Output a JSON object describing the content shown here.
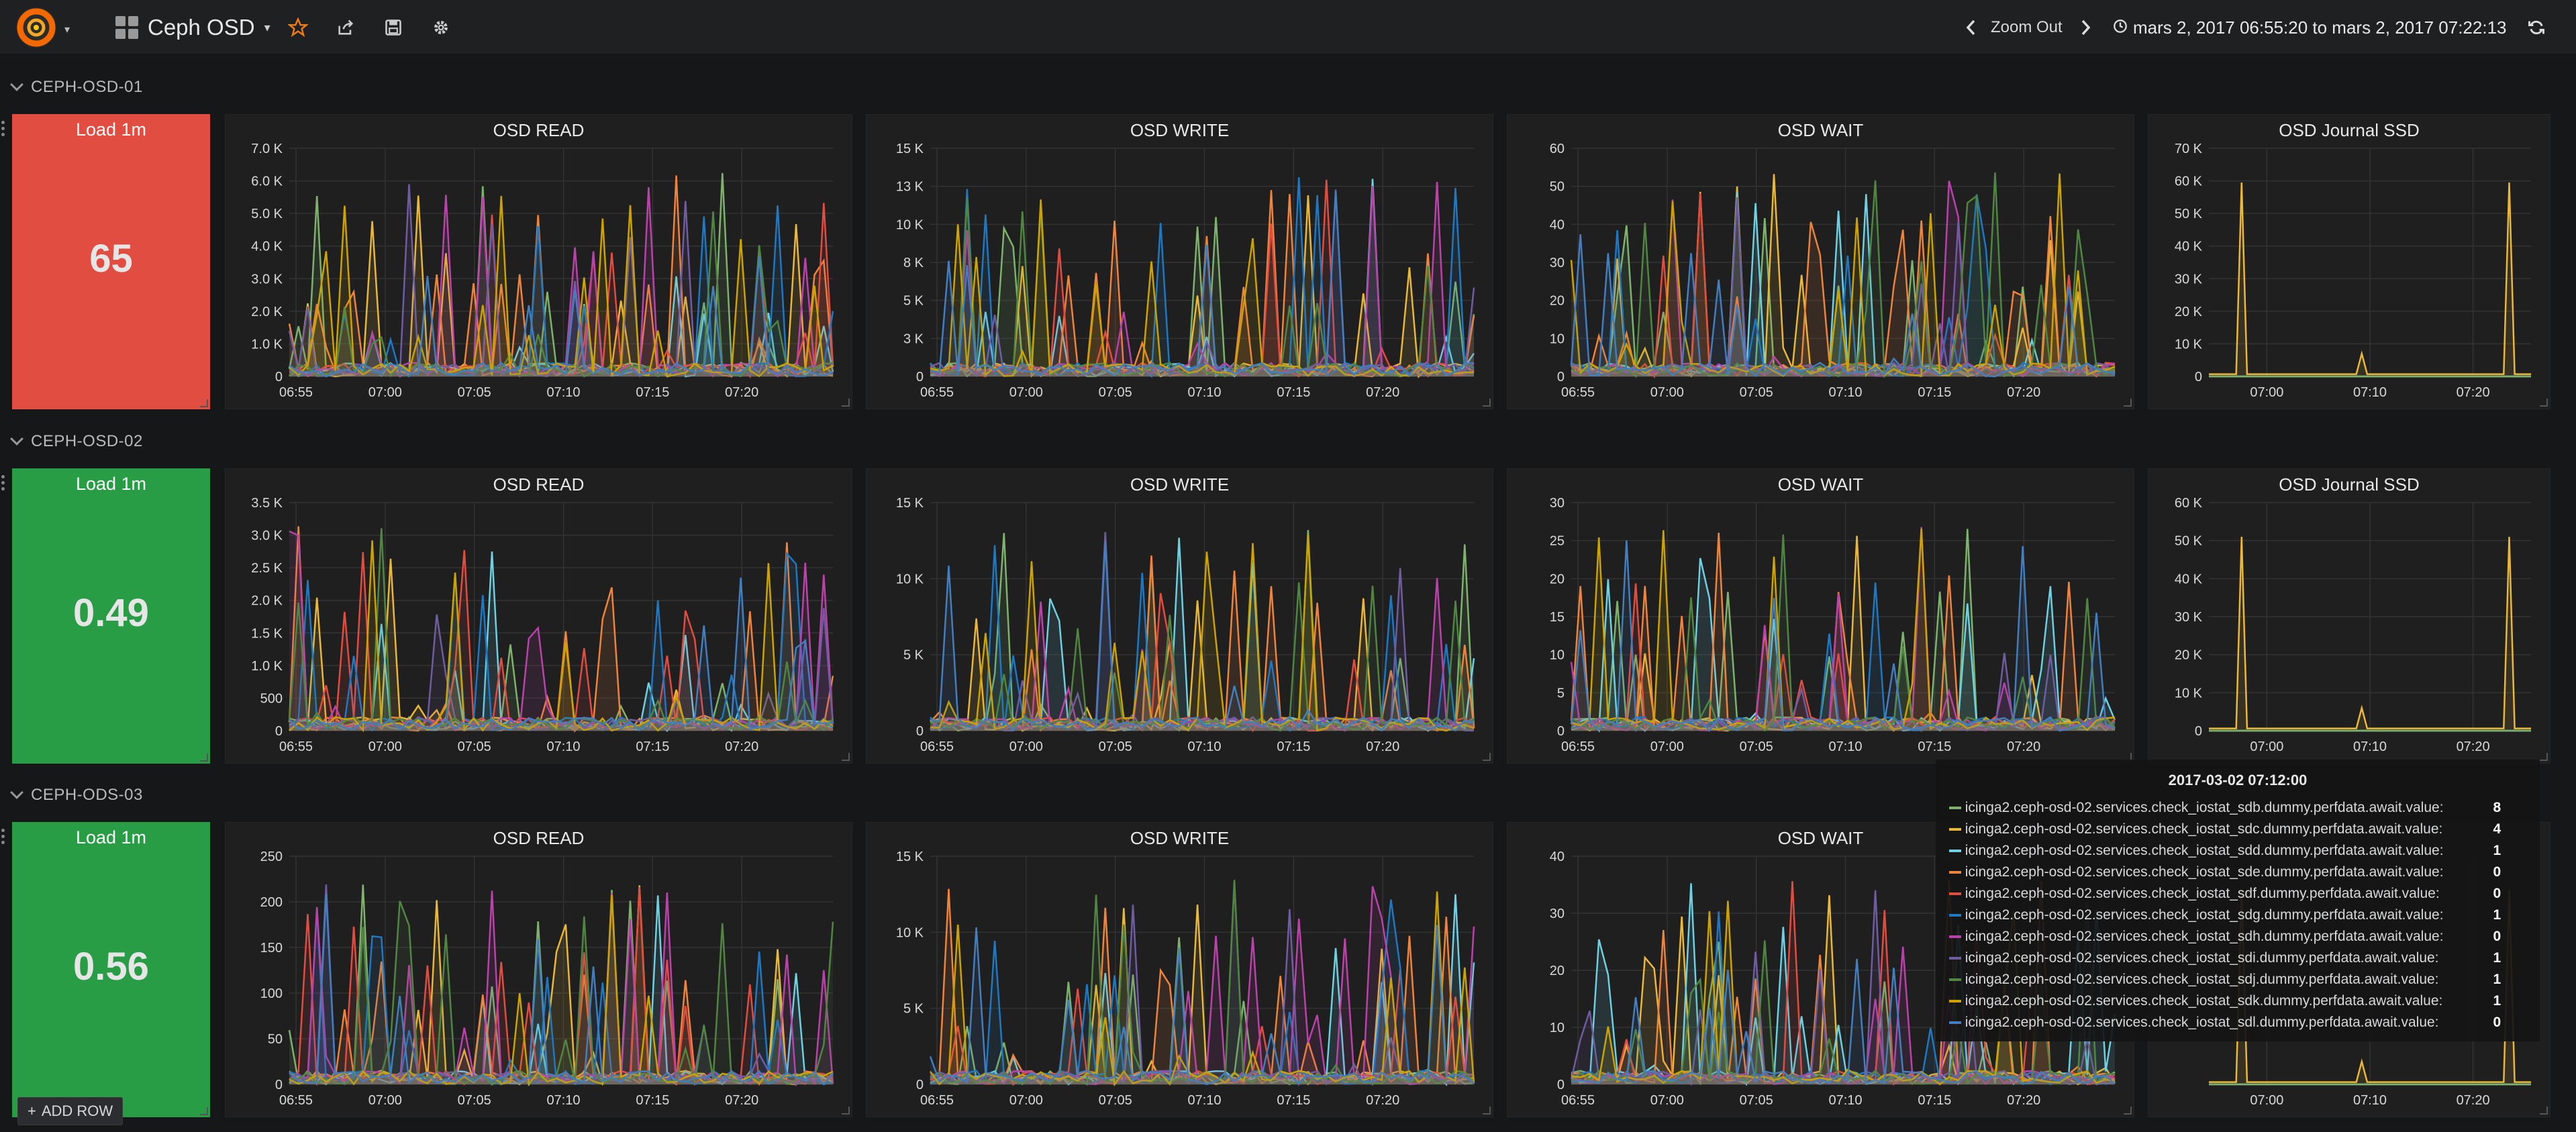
{
  "header": {
    "dashboard_title": "Ceph OSD",
    "zoom_out_label": "Zoom Out",
    "time_range": "mars 2, 2017 06:55:20 to mars 2, 2017 07:22:13"
  },
  "colors": {
    "stat_red": "#e24d42",
    "stat_green": "#299c46",
    "series": [
      "#7eb26d",
      "#eab839",
      "#6ed0e0",
      "#ef843c",
      "#e24d42",
      "#1f78c1",
      "#ba43a9",
      "#705da0",
      "#508642",
      "#cca300",
      "#447ebc"
    ]
  },
  "rows": [
    {
      "title": "CEPH-OSD-01",
      "stat": {
        "title": "Load 1m",
        "value": "65",
        "color": "red"
      },
      "panels": [
        {
          "title": "OSD READ",
          "y_ticks": [
            "0",
            "1.0 K",
            "2.0 K",
            "3.0 K",
            "4.0 K",
            "5.0 K",
            "6.0 K",
            "7.0 K"
          ],
          "x_ticks": [
            "06:55",
            "07:00",
            "07:05",
            "07:10",
            "07:15",
            "07:20"
          ]
        },
        {
          "title": "OSD WRITE",
          "y_ticks": [
            "0",
            "3 K",
            "5 K",
            "8 K",
            "10 K",
            "13 K",
            "15 K"
          ],
          "x_ticks": [
            "06:55",
            "07:00",
            "07:05",
            "07:10",
            "07:15",
            "07:20"
          ]
        },
        {
          "title": "OSD WAIT",
          "y_ticks": [
            "0",
            "10",
            "20",
            "30",
            "40",
            "50",
            "60"
          ],
          "x_ticks": [
            "06:55",
            "07:00",
            "07:05",
            "07:10",
            "07:15",
            "07:20"
          ]
        },
        {
          "title": "OSD Journal SSD",
          "y_ticks": [
            "0",
            "10 K",
            "20 K",
            "30 K",
            "40 K",
            "50 K",
            "60 K",
            "70 K"
          ],
          "x_ticks": [
            "07:00",
            "07:10",
            "07:20"
          ]
        }
      ]
    },
    {
      "title": "CEPH-OSD-02",
      "stat": {
        "title": "Load 1m",
        "value": "0.49",
        "color": "green"
      },
      "panels": [
        {
          "title": "OSD READ",
          "y_ticks": [
            "0",
            "500",
            "1.0 K",
            "1.5 K",
            "2.0 K",
            "2.5 K",
            "3.0 K",
            "3.5 K"
          ],
          "x_ticks": [
            "06:55",
            "07:00",
            "07:05",
            "07:10",
            "07:15",
            "07:20"
          ]
        },
        {
          "title": "OSD WRITE",
          "y_ticks": [
            "0",
            "5 K",
            "10 K",
            "15 K"
          ],
          "x_ticks": [
            "06:55",
            "07:00",
            "07:05",
            "07:10",
            "07:15",
            "07:20"
          ]
        },
        {
          "title": "OSD WAIT",
          "y_ticks": [
            "0",
            "5",
            "10",
            "15",
            "20",
            "25",
            "30"
          ],
          "x_ticks": [
            "06:55",
            "07:00",
            "07:05",
            "07:10",
            "07:15",
            "07:20"
          ]
        },
        {
          "title": "OSD Journal SSD",
          "y_ticks": [
            "0",
            "10 K",
            "20 K",
            "30 K",
            "40 K",
            "50 K",
            "60 K"
          ],
          "x_ticks": [
            "07:00",
            "07:10",
            "07:20"
          ]
        }
      ]
    },
    {
      "title": "CEPH-ODS-03",
      "stat": {
        "title": "Load 1m",
        "value": "0.56",
        "color": "green"
      },
      "panels": [
        {
          "title": "OSD READ",
          "y_ticks": [
            "0",
            "50",
            "100",
            "150",
            "200",
            "250"
          ],
          "x_ticks": [
            "06:55",
            "07:00",
            "07:05",
            "07:10",
            "07:15",
            "07:20"
          ]
        },
        {
          "title": "OSD WRITE",
          "y_ticks": [
            "0",
            "5 K",
            "10 K",
            "15 K"
          ],
          "x_ticks": [
            "06:55",
            "07:00",
            "07:05",
            "07:10",
            "07:15",
            "07:20"
          ]
        },
        {
          "title": "OSD WAIT",
          "y_ticks": [
            "0",
            "10",
            "20",
            "30",
            "40"
          ],
          "x_ticks": [
            "06:55",
            "07:00",
            "07:05",
            "07:10",
            "07:15",
            "07:20"
          ]
        },
        {
          "title": "",
          "y_ticks": [],
          "x_ticks": [
            "07:00",
            "07:10",
            "07:20"
          ]
        }
      ]
    }
  ],
  "tooltip": {
    "time": "2017-03-02 07:12:00",
    "items": [
      {
        "label": "icinga2.ceph-osd-02.services.check_iostat_sdb.dummy.perfdata.await.value:",
        "value": "8"
      },
      {
        "label": "icinga2.ceph-osd-02.services.check_iostat_sdc.dummy.perfdata.await.value:",
        "value": "4"
      },
      {
        "label": "icinga2.ceph-osd-02.services.check_iostat_sdd.dummy.perfdata.await.value:",
        "value": "1"
      },
      {
        "label": "icinga2.ceph-osd-02.services.check_iostat_sde.dummy.perfdata.await.value:",
        "value": "0"
      },
      {
        "label": "icinga2.ceph-osd-02.services.check_iostat_sdf.dummy.perfdata.await.value:",
        "value": "0"
      },
      {
        "label": "icinga2.ceph-osd-02.services.check_iostat_sdg.dummy.perfdata.await.value:",
        "value": "1"
      },
      {
        "label": "icinga2.ceph-osd-02.services.check_iostat_sdh.dummy.perfdata.await.value:",
        "value": "0"
      },
      {
        "label": "icinga2.ceph-osd-02.services.check_iostat_sdi.dummy.perfdata.await.value:",
        "value": "1"
      },
      {
        "label": "icinga2.ceph-osd-02.services.check_iostat_sdj.dummy.perfdata.await.value:",
        "value": "1"
      },
      {
        "label": "icinga2.ceph-osd-02.services.check_iostat_sdk.dummy.perfdata.await.value:",
        "value": "1"
      },
      {
        "label": "icinga2.ceph-osd-02.services.check_iostat_sdl.dummy.perfdata.await.value:",
        "value": "0"
      }
    ]
  },
  "footer": {
    "add_row_label": "ADD ROW"
  },
  "icons": [
    "grafana-logo-icon",
    "dashboard-grid-icon",
    "star-icon",
    "share-icon",
    "save-icon",
    "gear-icon",
    "chevron-left-icon",
    "chevron-right-icon",
    "clock-icon",
    "refresh-icon",
    "plus-icon"
  ]
}
